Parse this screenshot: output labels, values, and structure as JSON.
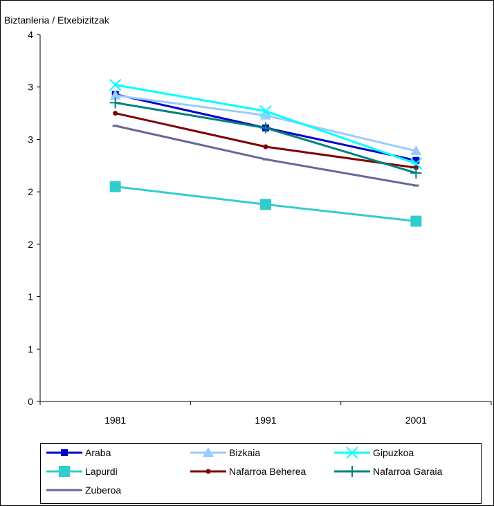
{
  "chart_data": {
    "type": "line",
    "ylabel": "Biztanleria / Etxebizitzak",
    "categories": [
      "1981",
      "1991",
      "2001"
    ],
    "y_tick_labels": [
      "0",
      "1",
      "1",
      "2",
      "2",
      "3",
      "3",
      "4"
    ],
    "ylim": [
      0,
      3.5
    ],
    "grid": false,
    "legend_position": "bottom",
    "series": [
      {
        "name": "Araba",
        "values": [
          2.93,
          2.61,
          2.3
        ],
        "color": "#0000CC",
        "marker": "square-small"
      },
      {
        "name": "Bizkaia",
        "values": [
          2.92,
          2.73,
          2.39
        ],
        "color": "#99CCFF",
        "marker": "triangle"
      },
      {
        "name": "Gipuzkoa",
        "values": [
          3.02,
          2.77,
          2.27
        ],
        "color": "#00FFFF",
        "marker": "x"
      },
      {
        "name": "Lapurdi",
        "values": [
          2.05,
          1.88,
          1.72
        ],
        "color": "#33CCCC",
        "marker": "square-large"
      },
      {
        "name": "Nafarroa Beherea",
        "values": [
          2.75,
          2.43,
          2.23
        ],
        "color": "#800000",
        "marker": "circle"
      },
      {
        "name": "Nafarroa Garaia",
        "values": [
          2.85,
          2.61,
          2.18
        ],
        "color": "#008080",
        "marker": "plus"
      },
      {
        "name": "Zuberoa",
        "values": [
          2.63,
          2.31,
          2.06
        ],
        "color": "#666699",
        "marker": "dash"
      }
    ]
  }
}
